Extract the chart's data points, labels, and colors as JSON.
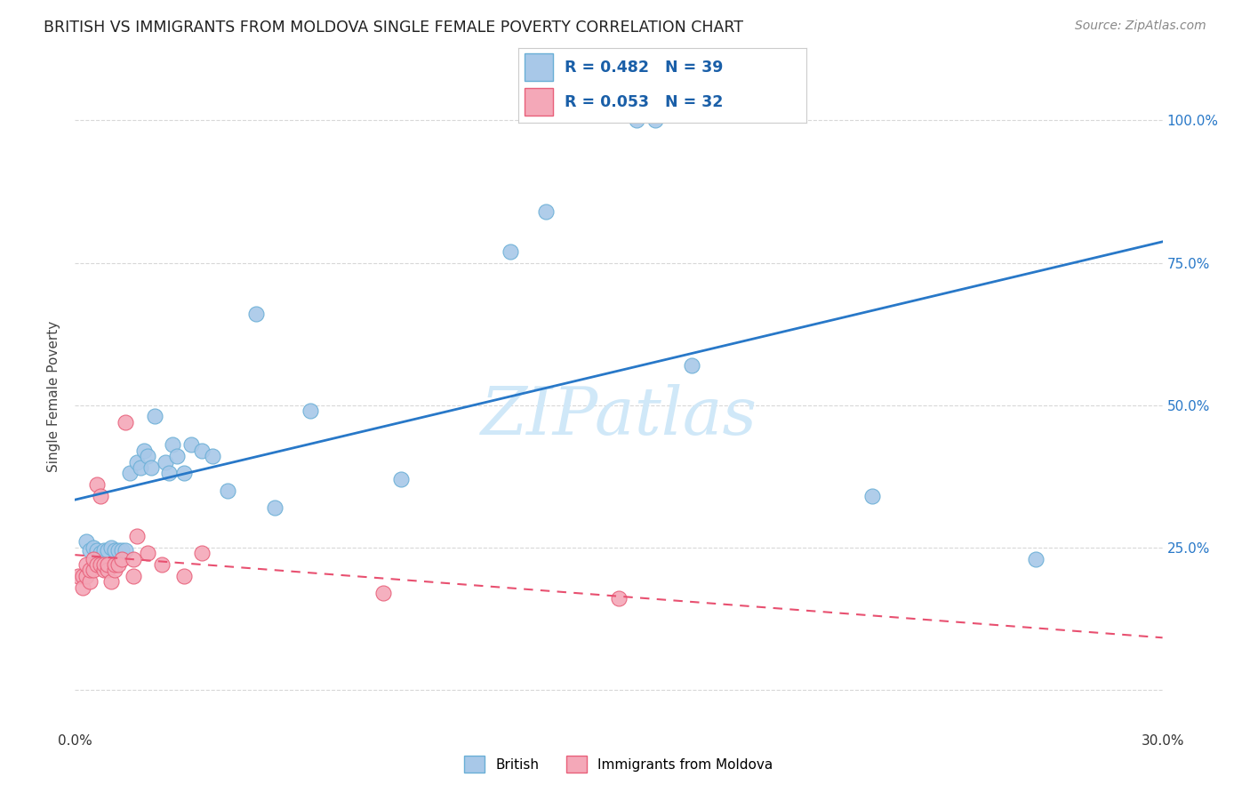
{
  "title": "BRITISH VS IMMIGRANTS FROM MOLDOVA SINGLE FEMALE POVERTY CORRELATION CHART",
  "source": "Source: ZipAtlas.com",
  "ylabel": "Single Female Poverty",
  "xlim": [
    0.0,
    0.3
  ],
  "ylim": [
    -0.07,
    1.1
  ],
  "xticks": [
    0.0,
    0.03,
    0.06,
    0.09,
    0.12,
    0.15,
    0.18,
    0.21,
    0.24,
    0.27,
    0.3
  ],
  "xtick_labels": [
    "0.0%",
    "",
    "",
    "",
    "",
    "",
    "",
    "",
    "",
    "",
    "30.0%"
  ],
  "ytick_positions": [
    0.0,
    0.25,
    0.5,
    0.75,
    1.0
  ],
  "ytick_labels": [
    "",
    "25.0%",
    "50.0%",
    "75.0%",
    "100.0%"
  ],
  "british_R": 0.482,
  "british_N": 39,
  "moldova_R": 0.053,
  "moldova_N": 32,
  "british_color": "#a8c8e8",
  "british_edge_color": "#6aafd6",
  "moldova_color": "#f4a8b8",
  "moldova_edge_color": "#e8607a",
  "trendline_british_color": "#2878c8",
  "trendline_moldova_color": "#e85070",
  "legend_text_color": "#1a5fa8",
  "watermark_color": "#d0e8f8",
  "british_x": [
    0.003,
    0.004,
    0.005,
    0.006,
    0.007,
    0.008,
    0.009,
    0.01,
    0.011,
    0.012,
    0.013,
    0.014,
    0.015,
    0.017,
    0.018,
    0.019,
    0.02,
    0.021,
    0.022,
    0.025,
    0.026,
    0.027,
    0.028,
    0.03,
    0.032,
    0.035,
    0.038,
    0.042,
    0.05,
    0.055,
    0.065,
    0.09,
    0.12,
    0.13,
    0.155,
    0.16,
    0.17,
    0.22,
    0.265
  ],
  "british_y": [
    0.26,
    0.245,
    0.25,
    0.245,
    0.24,
    0.245,
    0.245,
    0.25,
    0.245,
    0.245,
    0.245,
    0.245,
    0.38,
    0.4,
    0.39,
    0.42,
    0.41,
    0.39,
    0.48,
    0.4,
    0.38,
    0.43,
    0.41,
    0.38,
    0.43,
    0.42,
    0.41,
    0.35,
    0.66,
    0.32,
    0.49,
    0.37,
    0.77,
    0.84,
    1.0,
    1.0,
    0.57,
    0.34,
    0.23
  ],
  "moldova_x": [
    0.001,
    0.002,
    0.002,
    0.003,
    0.003,
    0.004,
    0.004,
    0.005,
    0.005,
    0.006,
    0.006,
    0.007,
    0.007,
    0.008,
    0.008,
    0.009,
    0.009,
    0.01,
    0.011,
    0.011,
    0.012,
    0.013,
    0.014,
    0.016,
    0.016,
    0.017,
    0.02,
    0.024,
    0.03,
    0.035,
    0.085,
    0.15
  ],
  "moldova_y": [
    0.2,
    0.2,
    0.18,
    0.2,
    0.22,
    0.19,
    0.21,
    0.21,
    0.23,
    0.22,
    0.36,
    0.22,
    0.34,
    0.21,
    0.22,
    0.21,
    0.22,
    0.19,
    0.21,
    0.22,
    0.22,
    0.23,
    0.47,
    0.23,
    0.2,
    0.27,
    0.24,
    0.22,
    0.2,
    0.24,
    0.17,
    0.16
  ],
  "background_color": "#ffffff",
  "grid_color": "#d8d8d8"
}
